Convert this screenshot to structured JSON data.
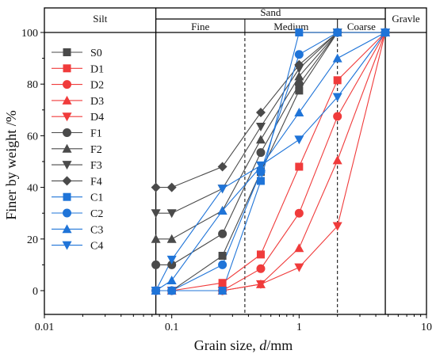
{
  "chart_data": {
    "type": "line",
    "xscale": "log",
    "xlim": [
      0.01,
      10
    ],
    "ylim": [
      -8.3,
      108
    ],
    "xlabel_prefix": "Grain size, ",
    "xlabel_var": "d",
    "xlabel_suffix": "/mm",
    "ylabel": "Finer by weight /%",
    "x_ticks": [
      0.01,
      0.1,
      1,
      10
    ],
    "x_tick_labels": [
      "0.01",
      "0.1",
      "1",
      "10"
    ],
    "y_ticks": [
      0,
      20,
      40,
      60,
      80,
      100
    ],
    "y_tick_labels": [
      "0",
      "20",
      "40",
      "60",
      "80",
      "100"
    ],
    "legend_position": "left",
    "zones": {
      "silt": "Silt",
      "sand": "Sand",
      "gravle": "Gravle",
      "fine": "Fine",
      "medium": "Medium",
      "coarse": "Coarse"
    },
    "boundaries": {
      "silt_sand": 0.075,
      "fine_medium": 0.375,
      "medium_coarse": 2,
      "sand_gravle": 4.75
    },
    "x": [
      0.075,
      0.1,
      0.25,
      0.5,
      1,
      2,
      4.75
    ],
    "series": [
      {
        "name": "S0",
        "color": "#4a4a4a",
        "marker": "square",
        "values": [
          0,
          0,
          13.5,
          46,
          77.5,
          100,
          100
        ]
      },
      {
        "name": "D1",
        "color": "#f03b3b",
        "marker": "square",
        "values": [
          0,
          0,
          3,
          14,
          48,
          81.5,
          100
        ]
      },
      {
        "name": "D2",
        "color": "#f03b3b",
        "marker": "circle",
        "values": [
          0,
          0,
          0,
          8.5,
          30,
          67.5,
          100
        ]
      },
      {
        "name": "D3",
        "color": "#f03b3b",
        "marker": "triangle",
        "values": [
          0,
          0,
          0,
          2.5,
          16.5,
          50.5,
          100
        ]
      },
      {
        "name": "D4",
        "color": "#f03b3b",
        "marker": "tridown",
        "values": [
          0,
          0,
          0,
          2.5,
          9,
          25,
          100
        ]
      },
      {
        "name": "F1",
        "color": "#4a4a4a",
        "marker": "circle",
        "values": [
          10,
          10,
          22,
          53.5,
          80,
          100,
          100
        ]
      },
      {
        "name": "F2",
        "color": "#4a4a4a",
        "marker": "triangle",
        "values": [
          20,
          20,
          31,
          58.5,
          83,
          100,
          100
        ]
      },
      {
        "name": "F3",
        "color": "#4a4a4a",
        "marker": "tridown",
        "values": [
          30,
          30,
          39.5,
          63.5,
          86,
          100,
          100
        ]
      },
      {
        "name": "F4",
        "color": "#4a4a4a",
        "marker": "diamond",
        "values": [
          40,
          40,
          48,
          69,
          87.5,
          100,
          100
        ]
      },
      {
        "name": "C1",
        "color": "#1f74d8",
        "marker": "square",
        "values": [
          0,
          0,
          0,
          42.5,
          100,
          100,
          100
        ]
      },
      {
        "name": "C2",
        "color": "#1f74d8",
        "marker": "circle",
        "values": [
          0,
          0,
          10,
          46,
          91.5,
          100,
          100
        ]
      },
      {
        "name": "C3",
        "color": "#1f74d8",
        "marker": "triangle",
        "values": [
          0,
          4,
          31,
          48,
          69,
          90,
          100
        ]
      },
      {
        "name": "C4",
        "color": "#1f74d8",
        "marker": "tridown",
        "values": [
          0,
          12,
          39.5,
          48.5,
          58.5,
          75,
          100
        ]
      }
    ]
  }
}
